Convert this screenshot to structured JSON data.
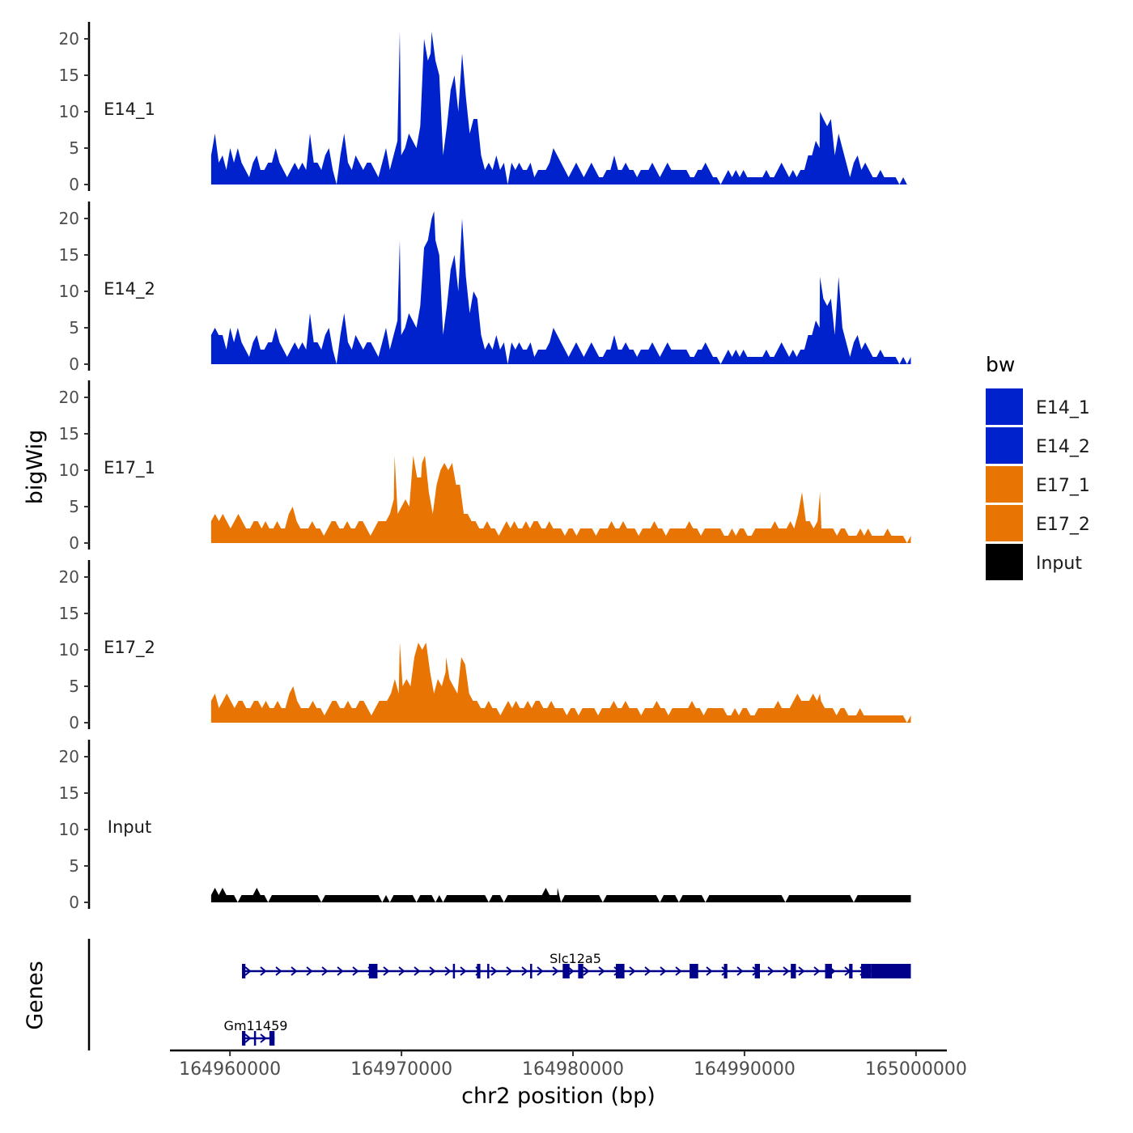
{
  "chart_data": {
    "type": "area",
    "title": "",
    "xlabel": "chr2 position (bp)",
    "ylabel": "bigWig",
    "genes_panel_label": "Genes",
    "x_range": [
      164958900,
      164999700
    ],
    "xlim": [
      164956500,
      165001800
    ],
    "ylim": [
      0,
      22
    ],
    "y_ticks": [
      0,
      5,
      10,
      15,
      20
    ],
    "x_ticks": [
      164960000,
      164970000,
      164980000,
      164990000,
      165000000
    ],
    "x_tick_labels": [
      "164960000",
      "164970000",
      "164980000",
      "164990000",
      "165000000"
    ],
    "legend": {
      "title": "bw",
      "position": "right",
      "entries": [
        {
          "name": "E14_1",
          "color": "#0022cc"
        },
        {
          "name": "E14_2",
          "color": "#0022cc"
        },
        {
          "name": "E17_1",
          "color": "#e87503"
        },
        {
          "name": "E17_2",
          "color": "#e87503"
        },
        {
          "name": "Input",
          "color": "#000000"
        }
      ]
    },
    "series": [
      {
        "name": "E14_1",
        "color": "#0022cc",
        "values": [
          4,
          7,
          3,
          4,
          2,
          5,
          3,
          5,
          3,
          2,
          1,
          3,
          4,
          2,
          2,
          3,
          3,
          5,
          3,
          2,
          1,
          2,
          3,
          2,
          3,
          2,
          7,
          3,
          3,
          2,
          4,
          5,
          2,
          0,
          4,
          7,
          3,
          2,
          4,
          3,
          2,
          3,
          3,
          2,
          1,
          3,
          5,
          2,
          4,
          6,
          4,
          5,
          7,
          6,
          5,
          8,
          20,
          17,
          21,
          17,
          15,
          4,
          8,
          13,
          15,
          10,
          18,
          12,
          7,
          9,
          9,
          4,
          2,
          3,
          2,
          4,
          2,
          3,
          0,
          3,
          2,
          3,
          2,
          2,
          3,
          1,
          2,
          2,
          2,
          3,
          5,
          4,
          3,
          2,
          1,
          2,
          3,
          2,
          1,
          2,
          3,
          2,
          1,
          1,
          2,
          2,
          4,
          2,
          2,
          3,
          2,
          2,
          1,
          2,
          2,
          2,
          3,
          2,
          1,
          2,
          3,
          2,
          2,
          2,
          2,
          2,
          1,
          1,
          2,
          2,
          3,
          2,
          1,
          1,
          0,
          1,
          2,
          1,
          2,
          1,
          2,
          1,
          1,
          1,
          1,
          1,
          2,
          1,
          1,
          2,
          3,
          2,
          1,
          2,
          1,
          2,
          2,
          4,
          4,
          6,
          5,
          9,
          8,
          9,
          4,
          7,
          5,
          3,
          1,
          3,
          4,
          2,
          3,
          2,
          1,
          1,
          2,
          1,
          1,
          1,
          1,
          0,
          1,
          0,
          0
        ],
        "peaks": [
          {
            "x": 164969900,
            "y": 21
          },
          {
            "x": 164971700,
            "y": 18
          },
          {
            "x": 164994400,
            "y": 10
          }
        ]
      },
      {
        "name": "E14_2",
        "color": "#0022cc",
        "values": [
          4,
          5,
          4,
          4,
          2,
          5,
          3,
          5,
          3,
          2,
          1,
          3,
          4,
          2,
          2,
          3,
          3,
          5,
          3,
          2,
          1,
          2,
          3,
          2,
          3,
          2,
          7,
          3,
          3,
          2,
          4,
          5,
          2,
          0,
          4,
          7,
          3,
          2,
          4,
          3,
          2,
          3,
          3,
          2,
          1,
          3,
          5,
          2,
          4,
          6,
          4,
          5,
          7,
          6,
          5,
          8,
          16,
          17,
          20,
          17,
          15,
          4,
          8,
          13,
          15,
          10,
          20,
          12,
          7,
          10,
          9,
          4,
          2,
          3,
          2,
          4,
          2,
          3,
          0,
          3,
          2,
          3,
          2,
          2,
          3,
          1,
          2,
          2,
          2,
          3,
          5,
          4,
          3,
          2,
          1,
          2,
          3,
          2,
          1,
          2,
          3,
          2,
          1,
          1,
          2,
          2,
          4,
          2,
          2,
          3,
          2,
          2,
          1,
          2,
          2,
          2,
          3,
          2,
          1,
          2,
          3,
          2,
          2,
          2,
          2,
          2,
          1,
          1,
          2,
          2,
          3,
          2,
          1,
          1,
          0,
          1,
          2,
          1,
          2,
          1,
          2,
          1,
          1,
          1,
          1,
          1,
          2,
          1,
          1,
          2,
          3,
          2,
          1,
          2,
          1,
          2,
          2,
          4,
          4,
          6,
          5,
          9,
          8,
          9,
          4,
          12,
          5,
          3,
          1,
          3,
          4,
          2,
          3,
          2,
          1,
          1,
          2,
          1,
          1,
          1,
          1,
          0,
          1,
          0,
          1
        ],
        "peaks": [
          {
            "x": 164969900,
            "y": 17
          },
          {
            "x": 164971900,
            "y": 21
          },
          {
            "x": 164994400,
            "y": 12
          }
        ]
      },
      {
        "name": "E17_1",
        "color": "#e87503",
        "values": [
          3,
          4,
          3,
          4,
          3,
          2,
          3,
          4,
          3,
          2,
          2,
          3,
          3,
          2,
          3,
          2,
          2,
          3,
          2,
          2,
          4,
          5,
          3,
          2,
          2,
          2,
          3,
          2,
          2,
          1,
          2,
          3,
          3,
          2,
          2,
          3,
          2,
          2,
          3,
          3,
          2,
          1,
          2,
          3,
          3,
          3,
          4,
          6,
          4,
          5,
          6,
          5,
          12,
          9,
          9,
          12,
          7,
          4,
          8,
          10,
          11,
          10,
          11,
          8,
          8,
          4,
          4,
          3,
          3,
          2,
          2,
          3,
          2,
          2,
          1,
          2,
          3,
          2,
          3,
          2,
          2,
          3,
          2,
          3,
          3,
          2,
          2,
          3,
          2,
          2,
          2,
          1,
          2,
          2,
          1,
          2,
          2,
          2,
          2,
          1,
          2,
          2,
          2,
          3,
          2,
          2,
          3,
          2,
          2,
          2,
          1,
          2,
          2,
          2,
          3,
          2,
          2,
          1,
          2,
          2,
          2,
          2,
          2,
          3,
          2,
          2,
          1,
          2,
          2,
          2,
          2,
          2,
          1,
          1,
          2,
          1,
          2,
          2,
          1,
          1,
          2,
          2,
          2,
          2,
          2,
          3,
          2,
          2,
          2,
          3,
          2,
          4,
          7,
          3,
          3,
          2,
          3,
          2,
          2,
          2,
          2,
          1,
          2,
          2,
          1,
          1,
          1,
          2,
          1,
          2,
          1,
          1,
          1,
          1,
          2,
          1,
          1,
          1,
          1,
          0,
          1
        ],
        "peaks": [
          {
            "x": 164969600,
            "y": 12
          },
          {
            "x": 164971200,
            "y": 11
          },
          {
            "x": 164994400,
            "y": 7
          }
        ]
      },
      {
        "name": "E17_2",
        "color": "#e87503",
        "values": [
          3,
          4,
          2,
          3,
          4,
          3,
          2,
          3,
          3,
          2,
          2,
          3,
          3,
          2,
          3,
          2,
          2,
          3,
          2,
          2,
          4,
          5,
          3,
          2,
          2,
          2,
          3,
          2,
          2,
          1,
          2,
          3,
          3,
          2,
          2,
          3,
          2,
          2,
          3,
          3,
          2,
          1,
          2,
          3,
          3,
          3,
          4,
          6,
          4,
          5,
          6,
          5,
          9,
          11,
          10,
          11,
          7,
          4,
          6,
          5,
          7,
          6,
          5,
          4,
          9,
          8,
          4,
          3,
          3,
          2,
          2,
          3,
          2,
          2,
          1,
          2,
          3,
          2,
          3,
          2,
          2,
          3,
          2,
          3,
          3,
          2,
          2,
          3,
          2,
          2,
          2,
          1,
          2,
          2,
          1,
          2,
          2,
          2,
          2,
          1,
          2,
          2,
          2,
          3,
          2,
          2,
          3,
          2,
          2,
          2,
          1,
          2,
          2,
          2,
          3,
          2,
          2,
          1,
          2,
          2,
          2,
          2,
          2,
          3,
          2,
          2,
          1,
          2,
          2,
          2,
          2,
          2,
          1,
          1,
          2,
          1,
          2,
          2,
          1,
          1,
          2,
          2,
          2,
          2,
          2,
          3,
          2,
          2,
          2,
          3,
          4,
          3,
          3,
          3,
          4,
          3,
          3,
          2,
          2,
          2,
          1,
          2,
          2,
          1,
          1,
          1,
          2,
          1,
          1,
          1,
          1,
          1,
          1,
          1,
          1,
          1,
          1,
          1,
          0,
          1
        ],
        "peaks": [
          {
            "x": 164969900,
            "y": 11
          },
          {
            "x": 164972600,
            "y": 9
          },
          {
            "x": 164994400,
            "y": 4
          }
        ]
      },
      {
        "name": "Input",
        "color": "#000000",
        "values": [
          1,
          2,
          1,
          2,
          1,
          1,
          1,
          0,
          1,
          1,
          1,
          1,
          2,
          1,
          1,
          0,
          1,
          1,
          1,
          1,
          1,
          1,
          1,
          1,
          1,
          1,
          1,
          1,
          1,
          0,
          1,
          1,
          1,
          1,
          1,
          1,
          1,
          1,
          1,
          1,
          1,
          1,
          1,
          1,
          1,
          0,
          1,
          0,
          1,
          1,
          1,
          1,
          1,
          1,
          0,
          1,
          1,
          1,
          1,
          0,
          1,
          0,
          1,
          1,
          1,
          1,
          1,
          1,
          1,
          1,
          1,
          1,
          1,
          0,
          1,
          1,
          1,
          0,
          1,
          1,
          1,
          1,
          1,
          1,
          1,
          1,
          1,
          1,
          2,
          1,
          1,
          1,
          0,
          1,
          1,
          1,
          1,
          1,
          1,
          1,
          1,
          1,
          1,
          0,
          1,
          1,
          1,
          1,
          1,
          1,
          1,
          1,
          1,
          1,
          1,
          1,
          1,
          1,
          0,
          1,
          1,
          1,
          1,
          0,
          1,
          1,
          1,
          1,
          1,
          1,
          0,
          1,
          1,
          1,
          1,
          1,
          1,
          1,
          1,
          1,
          1,
          1,
          1,
          1,
          1,
          1,
          1,
          1,
          1,
          1,
          1,
          0,
          1,
          1,
          1,
          1,
          1,
          1,
          1,
          1,
          1,
          1,
          1,
          1,
          1,
          1,
          1,
          1,
          1,
          0,
          1,
          1,
          1,
          1,
          1,
          1,
          1,
          1,
          1,
          1,
          1,
          1,
          1,
          1,
          1
        ],
        "peaks": [
          {
            "x": 164979100,
            "y": 2
          }
        ]
      }
    ],
    "genes": [
      {
        "name": "Gm11459",
        "strand": "+",
        "start": 164960700,
        "end": 164962600,
        "exons": [
          [
            164960700,
            164960900
          ],
          [
            164961400,
            164961500
          ],
          [
            164962300,
            164962600
          ]
        ]
      },
      {
        "name": "Slc12a5",
        "strand": "+",
        "start": 164960700,
        "end": 164999700,
        "exons": [
          [
            164960700,
            164960900
          ],
          [
            164968100,
            164968600
          ],
          [
            164973000,
            164973100
          ],
          [
            164974400,
            164974600
          ],
          [
            164975000,
            164975100
          ],
          [
            164977500,
            164977600
          ],
          [
            164979400,
            164979800
          ],
          [
            164980300,
            164980600
          ],
          [
            164982500,
            164983000
          ],
          [
            164986800,
            164987300
          ],
          [
            164988800,
            164989000
          ],
          [
            164990600,
            164990900
          ],
          [
            164992700,
            164993000
          ],
          [
            164994700,
            164995100
          ],
          [
            164996100,
            164996300
          ],
          [
            164996800,
            164997400
          ],
          [
            164997400,
            164999700
          ]
        ]
      }
    ]
  }
}
